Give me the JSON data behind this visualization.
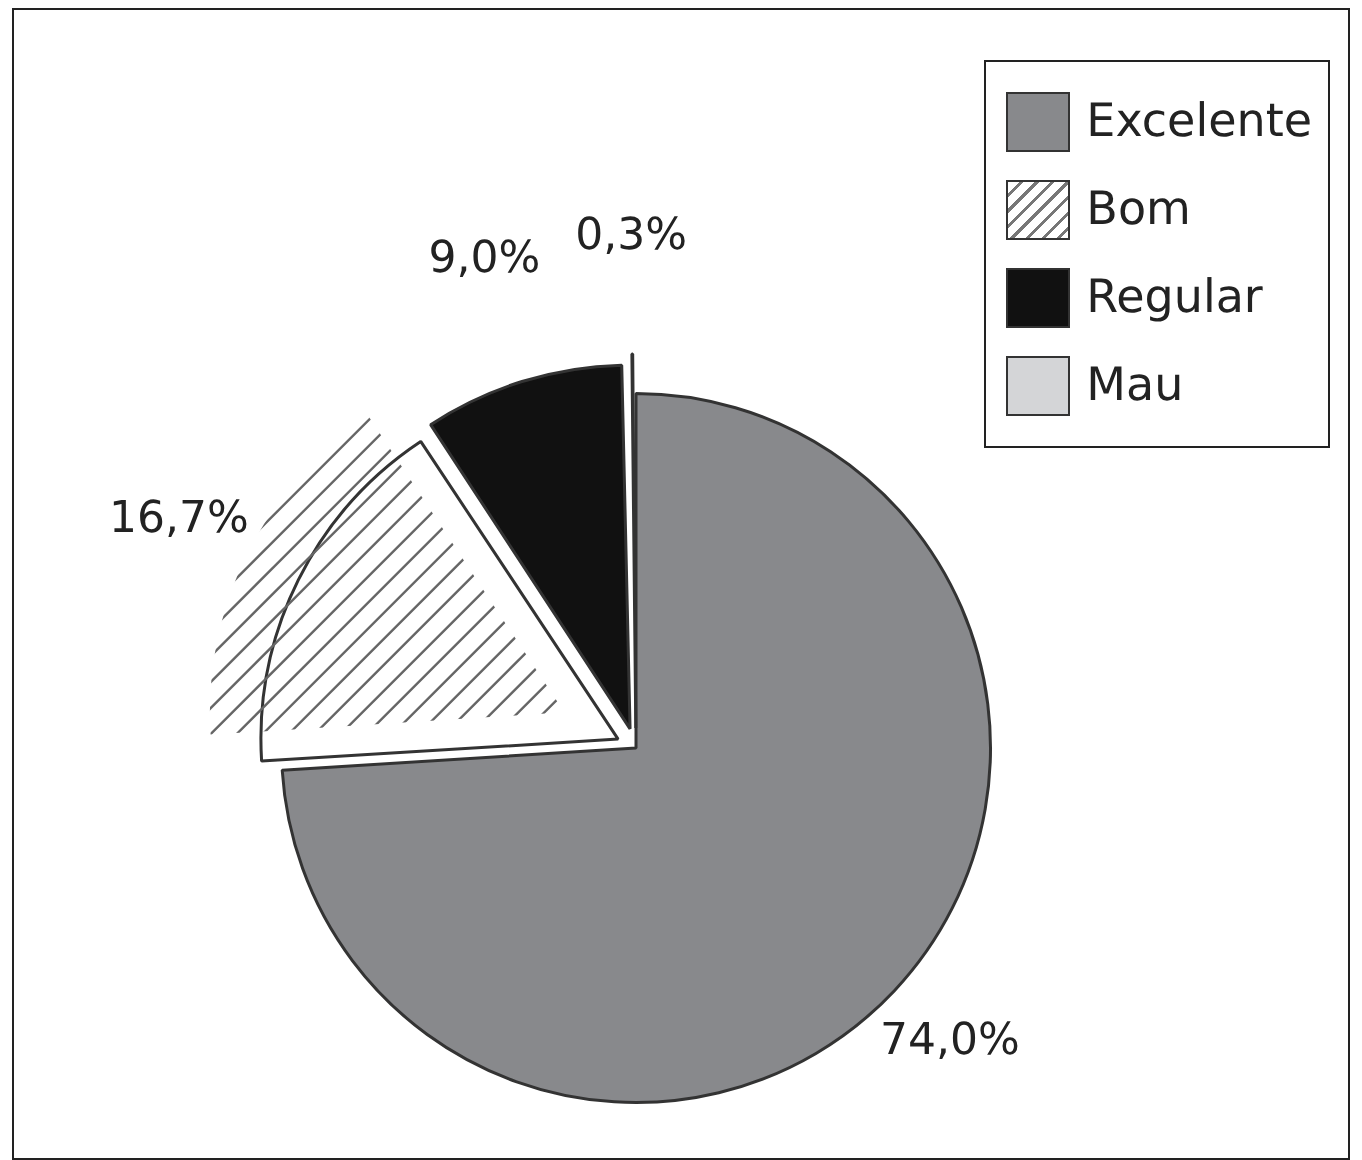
{
  "chart_data": {
    "type": "pie",
    "categories": [
      "Excelente",
      "Bom",
      "Regular",
      "Mau"
    ],
    "values": [
      74.0,
      16.7,
      9.0,
      0.3
    ],
    "colors": [
      "#88898c",
      "#ffffff",
      "#111111",
      "#d4d5d7"
    ],
    "value_labels": [
      "74,0%",
      "16,7%",
      "9,0%",
      "0,3%"
    ],
    "legend": "top right"
  }
}
